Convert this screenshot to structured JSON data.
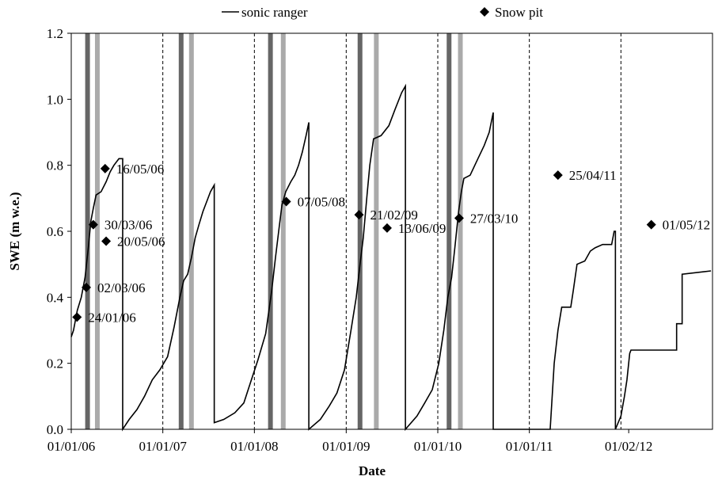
{
  "chart_data": {
    "type": "line",
    "xlabel": "Date",
    "ylabel": "SWE (m w.e.)",
    "ylim": [
      0,
      1.2
    ],
    "yticks": [
      "0.0",
      "0.2",
      "0.4",
      "0.6",
      "0.8",
      "1.0",
      "1.2"
    ],
    "xlim": [
      "2006-01-01",
      "2012-12-31"
    ],
    "xticks": [
      {
        "date": "2006-01-01",
        "label": "01/01/06"
      },
      {
        "date": "2007-01-01",
        "label": "01/01/07"
      },
      {
        "date": "2008-01-01",
        "label": "01/01/08"
      },
      {
        "date": "2009-01-01",
        "label": "01/01/09"
      },
      {
        "date": "2010-01-01",
        "label": "01/01/10"
      },
      {
        "date": "2011-01-01",
        "label": "01/01/11"
      },
      {
        "date": "2012-02-01",
        "label": "01/02/12"
      }
    ],
    "legend": {
      "position": "top",
      "entries": [
        "sonic ranger",
        "Snow pit"
      ]
    },
    "dashed_lines": [
      "2007-01-01",
      "2008-01-01",
      "2009-01-01",
      "2010-01-01",
      "2011-01-01",
      "2012-01-01"
    ],
    "bars": [
      {
        "date": "2006-03-07",
        "color": "#666666"
      },
      {
        "date": "2006-04-15",
        "color": "#aaaaaa"
      },
      {
        "date": "2007-03-15",
        "color": "#666666"
      },
      {
        "date": "2007-04-25",
        "color": "#aaaaaa"
      },
      {
        "date": "2008-03-05",
        "color": "#666666"
      },
      {
        "date": "2008-04-25",
        "color": "#aaaaaa"
      },
      {
        "date": "2009-02-25",
        "color": "#666666"
      },
      {
        "date": "2009-05-01",
        "color": "#aaaaaa"
      },
      {
        "date": "2010-02-15",
        "color": "#666666"
      },
      {
        "date": "2010-04-01",
        "color": "#aaaaaa"
      }
    ],
    "series": [
      {
        "name": "sonic ranger",
        "points": [
          [
            "2006-01-01",
            0.28
          ],
          [
            "2006-01-10",
            0.3
          ],
          [
            "2006-01-25",
            0.36
          ],
          [
            "2006-02-10",
            0.4
          ],
          [
            "2006-02-25",
            0.46
          ],
          [
            "2006-03-10",
            0.55
          ],
          [
            "2006-03-20",
            0.63
          ],
          [
            "2006-03-30",
            0.67
          ],
          [
            "2006-04-10",
            0.71
          ],
          [
            "2006-04-30",
            0.72
          ],
          [
            "2006-05-20",
            0.75
          ],
          [
            "2006-06-05",
            0.78
          ],
          [
            "2006-06-20",
            0.8
          ],
          [
            "2006-07-10",
            0.82
          ],
          [
            "2006-07-25",
            0.82
          ],
          [
            "2006-07-25",
            0.0
          ],
          [
            "2006-08-20",
            0.03
          ],
          [
            "2006-09-20",
            0.06
          ],
          [
            "2006-10-20",
            0.1
          ],
          [
            "2006-11-20",
            0.15
          ],
          [
            "2006-12-20",
            0.18
          ],
          [
            "2007-01-20",
            0.22
          ],
          [
            "2007-02-15",
            0.31
          ],
          [
            "2007-03-10",
            0.4
          ],
          [
            "2007-03-25",
            0.45
          ],
          [
            "2007-04-10",
            0.47
          ],
          [
            "2007-04-25",
            0.52
          ],
          [
            "2007-05-10",
            0.58
          ],
          [
            "2007-05-25",
            0.62
          ],
          [
            "2007-06-10",
            0.66
          ],
          [
            "2007-06-25",
            0.69
          ],
          [
            "2007-07-10",
            0.72
          ],
          [
            "2007-07-25",
            0.74
          ],
          [
            "2007-07-25",
            0.02
          ],
          [
            "2007-09-01",
            0.03
          ],
          [
            "2007-10-15",
            0.05
          ],
          [
            "2007-11-20",
            0.08
          ],
          [
            "2007-12-20",
            0.15
          ],
          [
            "2008-01-15",
            0.21
          ],
          [
            "2008-02-15",
            0.29
          ],
          [
            "2008-03-10",
            0.42
          ],
          [
            "2008-03-25",
            0.52
          ],
          [
            "2008-04-10",
            0.62
          ],
          [
            "2008-04-20",
            0.68
          ],
          [
            "2008-05-05",
            0.72
          ],
          [
            "2008-05-25",
            0.75
          ],
          [
            "2008-06-10",
            0.77
          ],
          [
            "2008-06-25",
            0.8
          ],
          [
            "2008-07-10",
            0.84
          ],
          [
            "2008-07-25",
            0.89
          ],
          [
            "2008-08-05",
            0.93
          ],
          [
            "2008-08-05",
            0.0
          ],
          [
            "2008-09-20",
            0.03
          ],
          [
            "2008-10-25",
            0.07
          ],
          [
            "2008-11-25",
            0.11
          ],
          [
            "2008-12-25",
            0.18
          ],
          [
            "2009-01-20",
            0.3
          ],
          [
            "2009-02-10",
            0.4
          ],
          [
            "2009-02-25",
            0.5
          ],
          [
            "2009-03-10",
            0.58
          ],
          [
            "2009-03-25",
            0.71
          ],
          [
            "2009-04-05",
            0.8
          ],
          [
            "2009-04-20",
            0.88
          ],
          [
            "2009-05-20",
            0.89
          ],
          [
            "2009-06-20",
            0.92
          ],
          [
            "2009-07-15",
            0.97
          ],
          [
            "2009-08-10",
            1.02
          ],
          [
            "2009-08-25",
            1.04
          ],
          [
            "2009-08-25",
            0.0
          ],
          [
            "2009-10-10",
            0.04
          ],
          [
            "2009-11-10",
            0.08
          ],
          [
            "2009-12-10",
            0.12
          ],
          [
            "2010-01-05",
            0.2
          ],
          [
            "2010-01-25",
            0.3
          ],
          [
            "2010-02-10",
            0.4
          ],
          [
            "2010-02-25",
            0.46
          ],
          [
            "2010-03-10",
            0.55
          ],
          [
            "2010-03-25",
            0.66
          ],
          [
            "2010-04-05",
            0.72
          ],
          [
            "2010-04-15",
            0.76
          ],
          [
            "2010-05-10",
            0.77
          ],
          [
            "2010-06-10",
            0.82
          ],
          [
            "2010-07-05",
            0.86
          ],
          [
            "2010-07-25",
            0.9
          ],
          [
            "2010-08-10",
            0.96
          ],
          [
            "2010-08-10",
            0.0
          ],
          [
            "2011-03-25",
            0.0
          ],
          [
            "2011-04-10",
            0.2
          ],
          [
            "2011-04-25",
            0.3
          ],
          [
            "2011-05-10",
            0.37
          ],
          [
            "2011-06-15",
            0.37
          ],
          [
            "2011-06-25",
            0.42
          ],
          [
            "2011-07-10",
            0.5
          ],
          [
            "2011-08-10",
            0.51
          ],
          [
            "2011-09-01",
            0.54
          ],
          [
            "2011-09-20",
            0.55
          ],
          [
            "2011-10-20",
            0.56
          ],
          [
            "2011-11-25",
            0.56
          ],
          [
            "2011-12-05",
            0.6
          ],
          [
            "2011-12-10",
            0.6
          ],
          [
            "2011-12-10",
            0.0
          ],
          [
            "2012-01-01",
            0.04
          ],
          [
            "2012-01-15",
            0.1
          ],
          [
            "2012-01-25",
            0.15
          ],
          [
            "2012-02-05",
            0.23
          ],
          [
            "2012-02-10",
            0.24
          ],
          [
            "2012-08-10",
            0.24
          ],
          [
            "2012-08-10",
            0.32
          ],
          [
            "2012-09-01",
            0.32
          ],
          [
            "2012-09-01",
            0.47
          ],
          [
            "2012-12-25",
            0.48
          ]
        ]
      }
    ],
    "snow_pits": [
      {
        "date": "2006-01-24",
        "value": 0.34,
        "label": "24/01/06"
      },
      {
        "date": "2006-03-02",
        "value": 0.43,
        "label": "02/03/06"
      },
      {
        "date": "2006-03-30",
        "value": 0.62,
        "label": "30/03/06"
      },
      {
        "date": "2006-05-16",
        "value": 0.79,
        "label": "16/05/06"
      },
      {
        "date": "2006-05-20",
        "value": 0.57,
        "label": "20/05/06"
      },
      {
        "date": "2008-05-07",
        "value": 0.69,
        "label": "07/05/08"
      },
      {
        "date": "2009-02-21",
        "value": 0.65,
        "label": "21/02/09"
      },
      {
        "date": "2009-06-13",
        "value": 0.61,
        "label": "13/06/09"
      },
      {
        "date": "2010-03-27",
        "value": 0.64,
        "label": "27/03/10"
      },
      {
        "date": "2011-04-25",
        "value": 0.77,
        "label": "25/04/11"
      },
      {
        "date": "2012-05-01",
        "value": 0.62,
        "label": "01/05/12"
      }
    ]
  }
}
